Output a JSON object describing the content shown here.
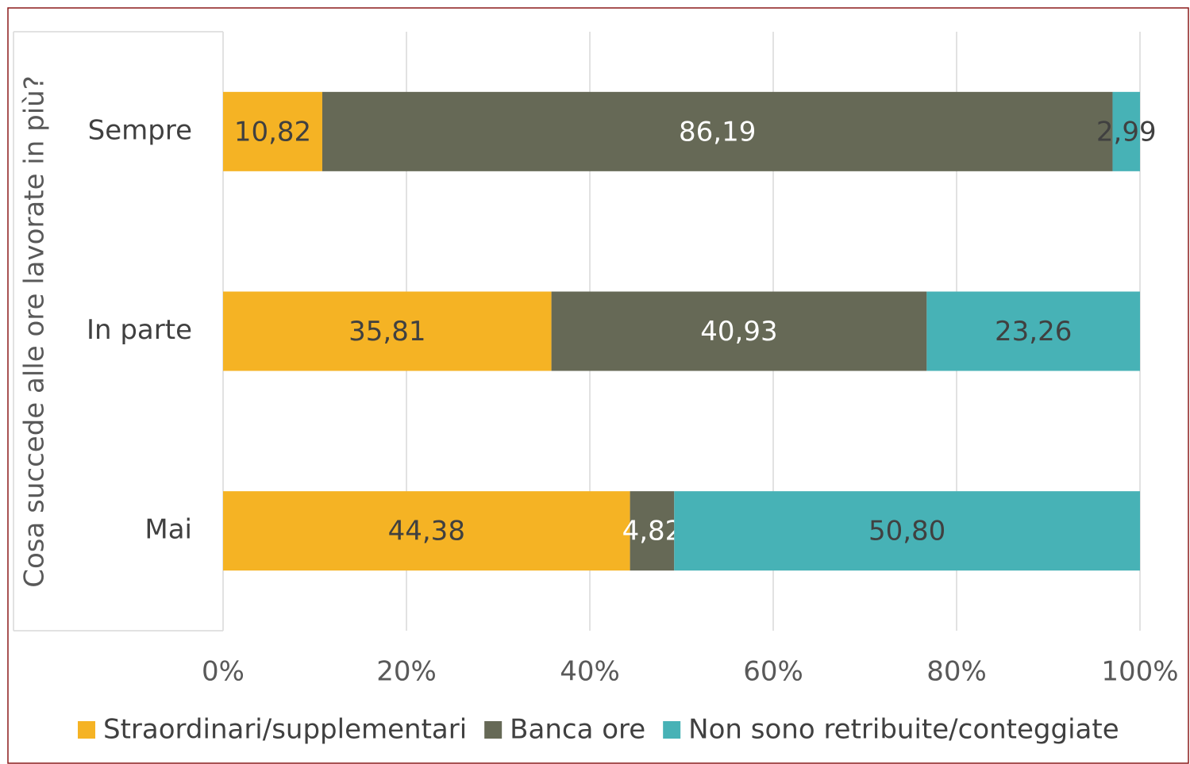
{
  "chart_data": {
    "type": "stacked-bar-horizontal",
    "y_label": "Cosa succede alle ore lavorate in più?",
    "categories": [
      "Sempre",
      "In parte",
      "Mai"
    ],
    "series": [
      {
        "name": "Straordinari/supplementari",
        "color": "#F5B324",
        "values": [
          10.82,
          35.81,
          44.38
        ],
        "value_labels": [
          "10,82",
          "35,81",
          "44,38"
        ]
      },
      {
        "name": "Banca ore",
        "color": "#666956",
        "values": [
          86.19,
          40.93,
          4.82
        ],
        "value_labels": [
          "86,19",
          "40,93",
          "4,82"
        ]
      },
      {
        "name": "Non sono retribuite/conteggiate",
        "color": "#47B2B6",
        "values": [
          2.99,
          23.26,
          50.8
        ],
        "value_labels": [
          "2,99",
          "23,26",
          "50,80"
        ]
      }
    ],
    "xlim": [
      0,
      100
    ],
    "xticks": [
      {
        "value": 0,
        "label": "0%"
      },
      {
        "value": 20,
        "label": "20%"
      },
      {
        "value": 40,
        "label": "40%"
      },
      {
        "value": 60,
        "label": "60%"
      },
      {
        "value": 80,
        "label": "80%"
      },
      {
        "value": 100,
        "label": "100%"
      }
    ],
    "grid": true,
    "legend": "bottom"
  }
}
